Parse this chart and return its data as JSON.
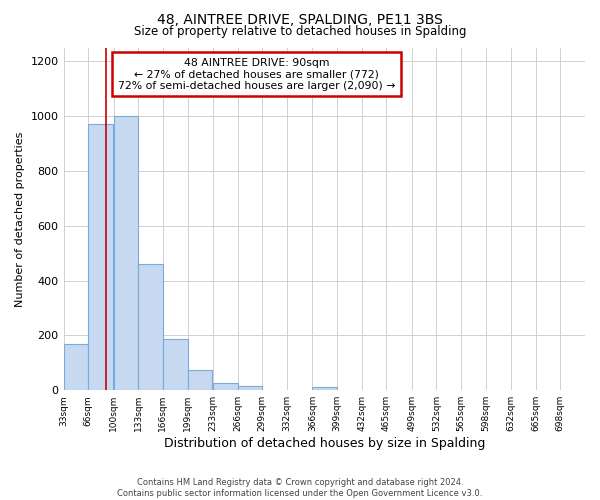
{
  "title": "48, AINTREE DRIVE, SPALDING, PE11 3BS",
  "subtitle": "Size of property relative to detached houses in Spalding",
  "xlabel": "Distribution of detached houses by size in Spalding",
  "ylabel": "Number of detached properties",
  "bin_labels": [
    "33sqm",
    "66sqm",
    "100sqm",
    "133sqm",
    "166sqm",
    "199sqm",
    "233sqm",
    "266sqm",
    "299sqm",
    "332sqm",
    "366sqm",
    "399sqm",
    "432sqm",
    "465sqm",
    "499sqm",
    "532sqm",
    "565sqm",
    "598sqm",
    "632sqm",
    "665sqm",
    "698sqm"
  ],
  "bar_values": [
    170,
    970,
    1000,
    460,
    185,
    75,
    25,
    15,
    0,
    0,
    10,
    0,
    0,
    0,
    0,
    0,
    0,
    0,
    0,
    0
  ],
  "bar_color": "#c6d9f0",
  "bar_edge_color": "#7aabdb",
  "annotation_box_text": "48 AINTREE DRIVE: 90sqm\n← 27% of detached houses are smaller (772)\n72% of semi-detached houses are larger (2,090) →",
  "annotation_box_color": "#ffffff",
  "annotation_box_edge_color": "#cc0000",
  "vline_x": 90,
  "vline_color": "#cc0000",
  "ylim": [
    0,
    1250
  ],
  "xlim_left": 33,
  "xlim_right": 731,
  "bin_width": 33,
  "bin_starts": [
    33,
    66,
    100,
    133,
    166,
    199,
    233,
    266,
    299,
    332,
    366,
    399,
    432,
    465,
    499,
    532,
    565,
    598,
    632,
    665
  ],
  "tick_positions": [
    33,
    66,
    100,
    133,
    166,
    199,
    233,
    266,
    299,
    332,
    366,
    399,
    432,
    465,
    499,
    532,
    565,
    598,
    632,
    665,
    698
  ],
  "footer_text": "Contains HM Land Registry data © Crown copyright and database right 2024.\nContains public sector information licensed under the Open Government Licence v3.0.",
  "bg_color": "#ffffff",
  "grid_color": "#d0d0d0"
}
